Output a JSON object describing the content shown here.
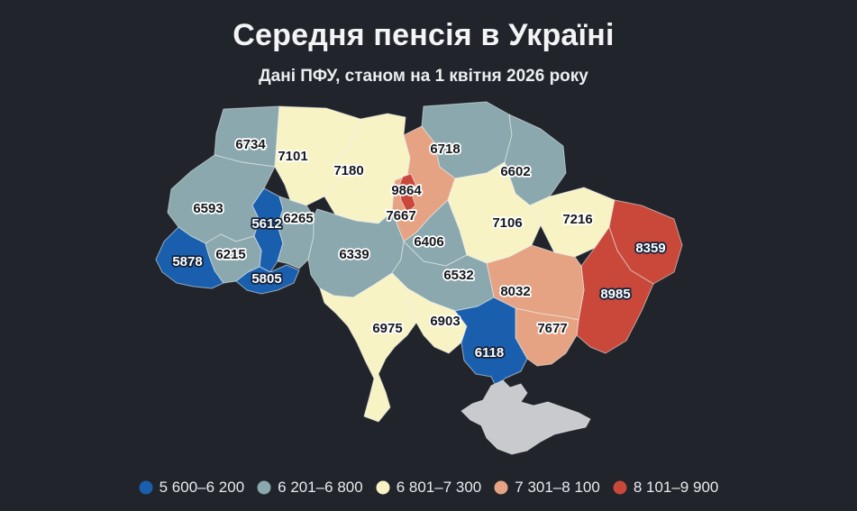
{
  "title": "Середня пенсія в Україні",
  "subtitle": "Дані ПФУ, станом на 1 квітня 2026 року",
  "colors": {
    "background": "#21252b",
    "no_data": "#c9cacd"
  },
  "chart_data": {
    "type": "choropleth",
    "title": "Середня пенсія в Україні",
    "subtitle": "Дані ПФУ, станом на 1 квітня 2026 року",
    "legend_position": "bottom",
    "bins": [
      {
        "label": "5 600–6 200",
        "color": "#1a5fae"
      },
      {
        "label": "6 201–6 800",
        "color": "#8aa8ad"
      },
      {
        "label": "6 801–7 300",
        "color": "#f8f3c5"
      },
      {
        "label": "7 301–8 100",
        "color": "#e6a383"
      },
      {
        "label": "8 101–9 900",
        "color": "#c9483a"
      }
    ],
    "regions": [
      {
        "id": "volyn",
        "value": 6734,
        "bin": 1,
        "label_theme": "dark"
      },
      {
        "id": "rivne",
        "value": 7101,
        "bin": 2,
        "label_theme": "dark"
      },
      {
        "id": "zhytomyr",
        "value": 7180,
        "bin": 2,
        "label_theme": "dark"
      },
      {
        "id": "kyiv-oblast",
        "value": 7667,
        "bin": 3,
        "label_theme": "dark"
      },
      {
        "id": "kyiv-city",
        "value": 9864,
        "bin": 4,
        "label_theme": "dark"
      },
      {
        "id": "chernihiv",
        "value": 6718,
        "bin": 1,
        "label_theme": "dark"
      },
      {
        "id": "sumy",
        "value": 6602,
        "bin": 1,
        "label_theme": "dark"
      },
      {
        "id": "lviv",
        "value": 6593,
        "bin": 1,
        "label_theme": "dark"
      },
      {
        "id": "ternopil",
        "value": 5612,
        "bin": 0,
        "label_theme": "light"
      },
      {
        "id": "khmelnytskyi",
        "value": 6265,
        "bin": 1,
        "label_theme": "dark"
      },
      {
        "id": "zakarpattia",
        "value": 5878,
        "bin": 0,
        "label_theme": "light"
      },
      {
        "id": "ivano-frankivsk",
        "value": 6215,
        "bin": 1,
        "label_theme": "dark"
      },
      {
        "id": "chernivtsi",
        "value": 5805,
        "bin": 0,
        "label_theme": "light"
      },
      {
        "id": "vinnytsia",
        "value": 6339,
        "bin": 1,
        "label_theme": "dark"
      },
      {
        "id": "cherkasy",
        "value": 6406,
        "bin": 1,
        "label_theme": "dark"
      },
      {
        "id": "poltava",
        "value": 7106,
        "bin": 2,
        "label_theme": "dark"
      },
      {
        "id": "kharkiv",
        "value": 7216,
        "bin": 2,
        "label_theme": "dark"
      },
      {
        "id": "luhansk",
        "value": 8359,
        "bin": 4,
        "label_theme": "light"
      },
      {
        "id": "donetsk",
        "value": 8985,
        "bin": 4,
        "label_theme": "light"
      },
      {
        "id": "dnipropetrovsk",
        "value": 8032,
        "bin": 3,
        "label_theme": "dark"
      },
      {
        "id": "kirovohrad",
        "value": 6532,
        "bin": 1,
        "label_theme": "dark"
      },
      {
        "id": "zaporizhzhia",
        "value": 7677,
        "bin": 3,
        "label_theme": "dark"
      },
      {
        "id": "mykolaiv",
        "value": 6903,
        "bin": 2,
        "label_theme": "dark"
      },
      {
        "id": "odesa",
        "value": 6975,
        "bin": 2,
        "label_theme": "dark"
      },
      {
        "id": "kherson",
        "value": 6118,
        "bin": 0,
        "label_theme": "light"
      },
      {
        "id": "crimea",
        "value": null,
        "bin": null,
        "label_theme": null
      }
    ]
  }
}
